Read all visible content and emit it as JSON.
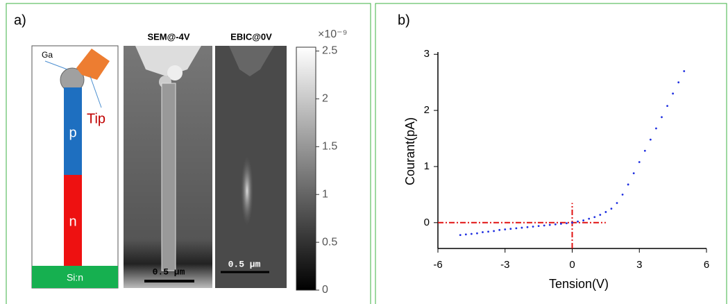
{
  "panel_a": {
    "label": "a)",
    "schematic": {
      "ga": "Ga",
      "tip": "Tip",
      "p": "p",
      "n": "n",
      "substrate": "Si:n"
    },
    "sem_title": "SEM@-4V",
    "ebic_title": "EBIC@0V",
    "scale_bar_sem": "0.5 µm",
    "scale_bar_ebic": "0.5 µm",
    "colorbar": {
      "exponent": "×10⁻⁹",
      "lim": [
        0,
        2.54
      ],
      "ticks": [
        0,
        0.5,
        1,
        1.5,
        2,
        2.5
      ]
    }
  },
  "chart_data": {
    "type": "scatter",
    "label": "b)",
    "x_label": "Tension(V)",
    "y_label": "Courant(pA)",
    "xlim": [
      -6,
      6
    ],
    "xticks": [
      -6,
      -3,
      0,
      3,
      6
    ],
    "ylim": [
      -0.46,
      3.04
    ],
    "yticks": [
      0,
      1,
      2,
      3
    ],
    "series": [
      {
        "color": "#1f2fe0",
        "x": [
          -5,
          -4.75,
          -4.5,
          -4.25,
          -4,
          -3.75,
          -3.5,
          -3.25,
          -3,
          -2.75,
          -2.5,
          -2.25,
          -2,
          -1.75,
          -1.5,
          -1.25,
          -1,
          -0.75,
          -0.5,
          -0.25,
          0,
          0.25,
          0.5,
          0.75,
          1,
          1.25,
          1.5,
          1.75,
          2,
          2.25,
          2.5,
          2.75,
          3,
          3.25,
          3.5,
          3.75,
          4,
          4.25,
          4.5,
          4.75,
          5
        ],
        "values": [
          -0.22,
          -0.21,
          -0.2,
          -0.19,
          -0.17,
          -0.16,
          -0.15,
          -0.13,
          -0.12,
          -0.11,
          -0.1,
          -0.09,
          -0.08,
          -0.07,
          -0.06,
          -0.05,
          -0.04,
          -0.03,
          -0.02,
          -0.01,
          0,
          0.02,
          0.04,
          0.07,
          0.1,
          0.14,
          0.19,
          0.25,
          0.35,
          0.5,
          0.68,
          0.88,
          1.08,
          1.28,
          1.48,
          1.68,
          1.88,
          2.08,
          2.3,
          2.5,
          2.7
        ]
      }
    ],
    "reference_lines": [
      {
        "axis": "y",
        "value": 0,
        "from": -6,
        "to": 1.5,
        "color": "#e01010"
      },
      {
        "axis": "x",
        "value": 0,
        "from": -0.46,
        "to": 0.35,
        "color": "#e01010"
      }
    ]
  }
}
